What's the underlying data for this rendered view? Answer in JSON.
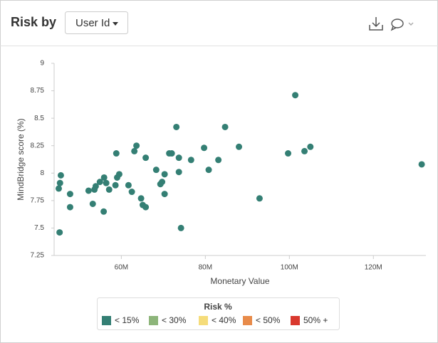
{
  "header": {
    "title": "Risk by",
    "dropdown": "User Id"
  },
  "chart_data": {
    "type": "scatter",
    "xlabel": "Monetary Value",
    "ylabel": "MindBridge score (%)",
    "xlim": [
      44,
      132.5
    ],
    "ylim": [
      7.25,
      9
    ],
    "xticks": [
      {
        "value": 60,
        "label": "60M"
      },
      {
        "value": 80,
        "label": "80M"
      },
      {
        "value": 100,
        "label": "100M"
      },
      {
        "value": 120,
        "label": "120M"
      }
    ],
    "yticks": [
      9,
      8.75,
      8.5,
      8.25,
      8,
      7.75,
      7.5,
      7.25
    ],
    "legend_title": "Risk %",
    "series": [
      {
        "name": "< 15%",
        "color": "#347f74",
        "x": [
          45.1,
          45.4,
          45.6,
          45.3,
          47.8,
          47.8,
          52.2,
          53.2,
          53.6,
          53.9,
          54.9,
          55.9,
          56.4,
          55.8,
          57.1,
          58.6,
          59.0,
          59.5,
          58.8,
          61.7,
          62.5,
          63.1,
          63.6,
          64.7,
          65.1,
          65.8,
          65.8,
          68.3,
          69.3,
          69.7,
          70.3,
          70.3,
          71.4,
          72.0,
          73.1,
          73.7,
          73.7,
          74.2,
          76.6,
          79.7,
          80.8,
          83.1,
          84.7,
          88.0,
          92.9,
          99.7,
          101.4,
          103.6,
          105.0,
          131.5
        ],
        "values": [
          7.86,
          7.91,
          7.98,
          7.46,
          7.81,
          7.69,
          7.84,
          7.72,
          7.85,
          7.88,
          7.92,
          7.96,
          7.91,
          7.65,
          7.85,
          7.89,
          7.96,
          7.99,
          8.18,
          7.89,
          7.83,
          8.2,
          8.25,
          7.77,
          7.71,
          7.69,
          8.14,
          8.03,
          7.9,
          7.92,
          7.99,
          7.81,
          8.18,
          8.18,
          8.42,
          8.14,
          8.01,
          7.5,
          8.12,
          8.23,
          8.03,
          8.12,
          8.42,
          8.24,
          7.77,
          8.18,
          8.71,
          8.2,
          8.24,
          8.08
        ]
      },
      {
        "name": "< 30%",
        "color": "#8db57a",
        "x": [],
        "values": []
      },
      {
        "name": "< 40%",
        "color": "#f5dc7a",
        "x": [],
        "values": []
      },
      {
        "name": "< 50%",
        "color": "#e88b4a",
        "x": [],
        "values": []
      },
      {
        "name": "50% +",
        "color": "#d9382e",
        "x": [],
        "values": []
      }
    ]
  }
}
